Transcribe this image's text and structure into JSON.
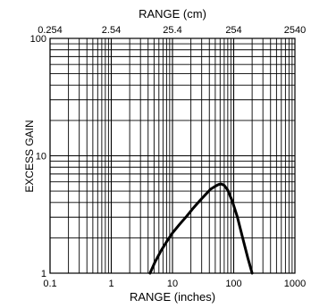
{
  "chart_data": {
    "type": "line",
    "x_scale": "log",
    "y_scale": "log",
    "xlim": [
      0.1,
      1000
    ],
    "ylim": [
      1,
      100
    ],
    "xlabel": "RANGE (inches)",
    "ylabel": "EXCESS GAIN",
    "x2label": "RANGE (cm)",
    "x_ticks": [
      "0.1",
      "1",
      "10",
      "100",
      "1000"
    ],
    "x2_ticks": [
      "0.254",
      "2.54",
      "25.4",
      "254",
      "2540"
    ],
    "y_ticks": [
      "1",
      "10",
      "100"
    ],
    "grid": true,
    "series": [
      {
        "x": [
          4.3,
          5.2,
          6.5,
          8,
          10,
          13,
          17,
          22,
          28,
          35,
          42,
          50,
          57,
          63,
          70,
          80,
          95,
          115,
          140,
          170,
          200
        ],
        "y": [
          1.0,
          1.25,
          1.55,
          1.85,
          2.2,
          2.6,
          3.05,
          3.6,
          4.15,
          4.7,
          5.2,
          5.5,
          5.7,
          5.75,
          5.6,
          5.1,
          4.1,
          3.0,
          2.0,
          1.35,
          1.0
        ]
      }
    ]
  }
}
